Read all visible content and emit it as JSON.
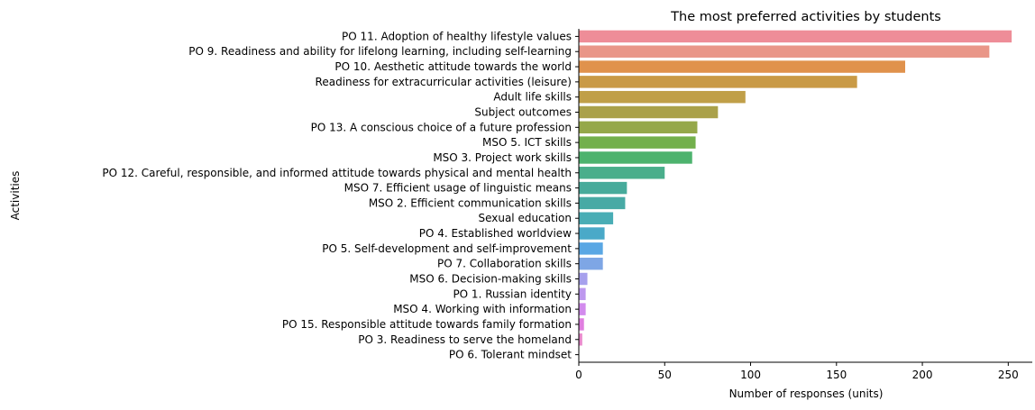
{
  "chart_data": {
    "type": "bar",
    "orientation": "horizontal",
    "title": "The most preferred activities by students",
    "xlabel": "Number of responses (units)",
    "ylabel": "Activities",
    "xlim": [
      0,
      264
    ],
    "xticks": [
      0,
      50,
      100,
      150,
      200,
      250
    ],
    "grid": false,
    "categories": [
      "PO 11. Adoption of healthy lifestyle values",
      "PO 9. Readiness and ability for lifelong learning, including self-learning",
      "PO 10. Aesthetic attitude towards the world",
      "Readiness for extracurricular activities (leisure)",
      "Adult life skills",
      "Subject outcomes",
      "PO 13. A conscious choice of a future profession",
      "MSO 5. ICT skills",
      "MSO 3. Project work skills",
      "PO 12. Careful, responsible, and informed attitude towards physical and mental health",
      "MSO 7. Efficient usage of linguistic means",
      "MSO 2. Efficient communication skills",
      "Sexual education",
      "PO 4. Established worldview",
      "PO 5. Self-development and self-improvement",
      "PO 7. Collaboration skills",
      "MSO 6. Decision-making skills",
      "PO 1. Russian identity",
      "MSO 4. Working with information",
      "PO 15. Responsible attitude towards family formation",
      "PO 3. Readiness to serve the homeland",
      "PO 6. Tolerant mindset"
    ],
    "values": [
      252,
      239,
      190,
      162,
      97,
      81,
      69,
      68,
      66,
      50,
      28,
      27,
      20,
      15,
      14,
      14,
      5,
      4,
      4,
      3,
      2,
      0
    ],
    "colors": [
      "#ee8d98",
      "#e99688",
      "#e0924c",
      "#c99a46",
      "#c09f48",
      "#aaa14a",
      "#95a84a",
      "#73b04c",
      "#4db36e",
      "#4aae8b",
      "#47ab9b",
      "#48aaa5",
      "#49adb5",
      "#4aa9c8",
      "#5aa7e4",
      "#7ea6e5",
      "#a6a0ed",
      "#bd98ee",
      "#d28bed",
      "#e07ee0",
      "#e989cc",
      "#ef8ab4"
    ]
  }
}
